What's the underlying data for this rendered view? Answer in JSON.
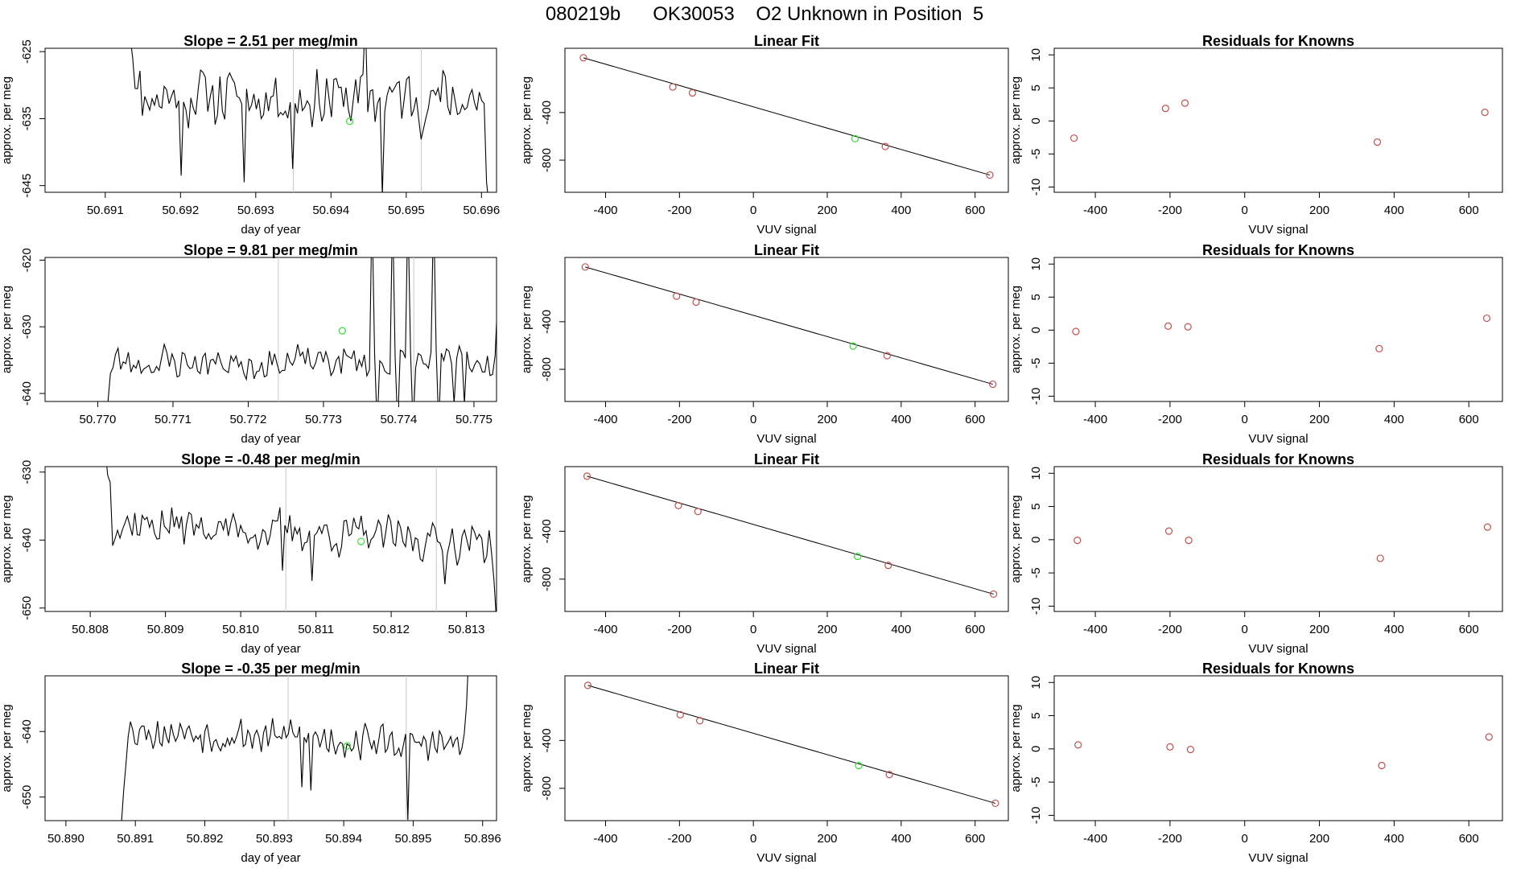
{
  "header": {
    "run_id": "080219b",
    "tank_id": "OK30053",
    "description": "O2 Unknown in Position  5"
  },
  "colors": {
    "line": "#000000",
    "known_point": "#c0504d",
    "unknown_point": "#33dd33",
    "guide_line": "#c8c8c8"
  },
  "chart_data": [
    {
      "type": "line",
      "title": "Slope =  2.51  per meg/min",
      "xlabel": "day of year",
      "ylabel": "approx. per meg",
      "xlim": [
        50.6902,
        50.6962
      ],
      "ylim": [
        -646,
        -624.5
      ],
      "xticks": [
        50.691,
        50.692,
        50.693,
        50.694,
        50.695,
        50.696
      ],
      "xtick_labels": [
        "50.691",
        "50.692",
        "50.693",
        "50.694",
        "50.695",
        "50.696"
      ],
      "yticks": [
        -625,
        -635,
        -645
      ],
      "ytick_labels": [
        "-625",
        "-635",
        "-645"
      ],
      "x_start": 50.6913,
      "x_end": 50.6961,
      "n": 150,
      "seed": 11,
      "base": -631.5,
      "amplitude": 3.4,
      "trend": -0.6,
      "start_values": [
        -620,
        -623,
        -626,
        -630.5
      ],
      "end_values": [
        -644.5,
        -648
      ],
      "spikes": [
        [
          22,
          -643.5
        ],
        [
          48,
          -644.5
        ],
        [
          68,
          -642.5
        ],
        [
          98,
          -620
        ],
        [
          105,
          -646.5
        ]
      ],
      "guides": [
        50.6935,
        50.6952
      ],
      "unknown_point": [
        50.69425,
        -635.4
      ]
    },
    {
      "type": "line",
      "title": "Slope =  9.81  per meg/min",
      "xlabel": "day of year",
      "ylabel": "approx. per meg",
      "xlim": [
        50.7693,
        50.7753
      ],
      "ylim": [
        -641.2,
        -619.6
      ],
      "xticks": [
        50.77,
        50.771,
        50.772,
        50.773,
        50.774,
        50.775
      ],
      "xtick_labels": [
        "50.770",
        "50.771",
        "50.772",
        "50.773",
        "50.774",
        "50.775"
      ],
      "yticks": [
        -620,
        -630,
        -640
      ],
      "ytick_labels": [
        "-620",
        "-630",
        "-640"
      ],
      "x_start": 50.7701,
      "x_end": 50.77535,
      "n": 155,
      "seed": 23,
      "base": -635.4,
      "amplitude": 1.9,
      "trend": 0.3,
      "start_values": [
        -645,
        -641.5,
        -637
      ],
      "end_values": [
        -625,
        -612
      ],
      "spikes": [
        [
          104,
          -612
        ],
        [
          106,
          -645
        ],
        [
          112,
          -612
        ],
        [
          114,
          -645
        ],
        [
          118,
          -612
        ],
        [
          120,
          -645
        ],
        [
          128,
          -612
        ],
        [
          130,
          -645
        ],
        [
          136,
          -641.5
        ],
        [
          140,
          -641.5
        ]
      ],
      "guides": [
        50.7724,
        50.7742
      ],
      "unknown_point": [
        50.77325,
        -630.6
      ]
    },
    {
      "type": "line",
      "title": "Slope =  -0.48  per meg/min",
      "xlabel": "day of year",
      "ylabel": "approx. per meg",
      "xlim": [
        50.8074,
        50.8134
      ],
      "ylim": [
        -650.5,
        -629.2
      ],
      "xticks": [
        50.808,
        50.809,
        50.81,
        50.811,
        50.812,
        50.813
      ],
      "xtick_labels": [
        "50.808",
        "50.809",
        "50.810",
        "50.811",
        "50.812",
        "50.813"
      ],
      "yticks": [
        -630,
        -640,
        -650
      ],
      "ytick_labels": [
        "-630",
        "-640",
        "-650"
      ],
      "x_start": 50.8082,
      "x_end": 50.8134,
      "n": 160,
      "seed": 37,
      "base": -637.3,
      "amplitude": 2.2,
      "trend": -3.2,
      "start_values": [
        -627,
        -630.5,
        -631.5
      ],
      "end_values": [
        -646,
        -652
      ],
      "spikes": [
        [
          72,
          -644.5
        ],
        [
          84,
          -646
        ],
        [
          138,
          -646.5
        ]
      ],
      "guides": [
        50.8106,
        50.8126
      ],
      "unknown_point": [
        50.8116,
        -640.2
      ]
    },
    {
      "type": "line",
      "title": "Slope =  -0.35  per meg/min",
      "xlabel": "day of year",
      "ylabel": "approx. per meg",
      "xlim": [
        50.8897,
        50.8962
      ],
      "ylim": [
        -653.6,
        -631.5
      ],
      "xticks": [
        50.89,
        50.891,
        50.892,
        50.893,
        50.894,
        50.895,
        50.896
      ],
      "xtick_labels": [
        "50.890",
        "50.891",
        "50.892",
        "50.893",
        "50.894",
        "50.895",
        "50.896"
      ],
      "yticks": [
        -640,
        -650
      ],
      "ytick_labels": [
        "-640",
        "-650"
      ],
      "x_start": 50.8908,
      "x_end": 50.8958,
      "n": 155,
      "seed": 53,
      "base": -639.6,
      "amplitude": 2.0,
      "trend": -2.6,
      "start_values": [
        -654,
        -649,
        -645
      ],
      "end_values": [
        -636,
        -628
      ],
      "spikes": [
        [
          80,
          -648.5
        ],
        [
          84,
          -649
        ],
        [
          127,
          -653.5
        ]
      ],
      "guides": [
        50.8932,
        50.8949
      ],
      "unknown_point": [
        50.89405,
        -642.2
      ]
    },
    {
      "type": "scatter",
      "title": "Linear Fit",
      "xlabel": "VUV signal",
      "ylabel": "approx. per meg",
      "xlim": [
        -510,
        690
      ],
      "ylim": [
        -1070,
        140
      ],
      "xticks": [
        -400,
        -200,
        0,
        200,
        400,
        600
      ],
      "xtick_labels": [
        "-400",
        "-200",
        "0",
        "200",
        "400",
        "600"
      ],
      "yticks": [
        -400,
        -800
      ],
      "ytick_labels": [
        "-400",
        "-800"
      ],
      "known_points": [
        [
          -460,
          60
        ],
        [
          -218,
          -185
        ],
        [
          -165,
          -235
        ],
        [
          357,
          -685
        ],
        [
          640,
          -925
        ]
      ],
      "unknown_points": [
        [
          275,
          -620
        ]
      ],
      "fit_line": [
        [
          -460,
          60
        ],
        [
          640,
          -925
        ]
      ]
    },
    {
      "type": "scatter",
      "title": "Linear Fit",
      "xlabel": "VUV signal",
      "ylabel": "approx. per meg",
      "xlim": [
        -510,
        690
      ],
      "ylim": [
        -1070,
        140
      ],
      "xticks": [
        -400,
        -200,
        0,
        200,
        400,
        600
      ],
      "xtick_labels": [
        "-400",
        "-200",
        "0",
        "200",
        "400",
        "600"
      ],
      "yticks": [
        -400,
        -800
      ],
      "ytick_labels": [
        "-400",
        "-800"
      ],
      "known_points": [
        [
          -455,
          60
        ],
        [
          -208,
          -185
        ],
        [
          -155,
          -235
        ],
        [
          362,
          -685
        ],
        [
          648,
          -925
        ]
      ],
      "unknown_points": [
        [
          270,
          -605
        ]
      ],
      "fit_line": [
        [
          -455,
          60
        ],
        [
          648,
          -925
        ]
      ]
    },
    {
      "type": "scatter",
      "title": "Linear Fit",
      "xlabel": "VUV signal",
      "ylabel": "approx. per meg",
      "xlim": [
        -510,
        690
      ],
      "ylim": [
        -1070,
        140
      ],
      "xticks": [
        -400,
        -200,
        0,
        200,
        400,
        600
      ],
      "xtick_labels": [
        "-400",
        "-200",
        "0",
        "200",
        "400",
        "600"
      ],
      "yticks": [
        -400,
        -800
      ],
      "ytick_labels": [
        "-400",
        "-800"
      ],
      "known_points": [
        [
          -450,
          60
        ],
        [
          -203,
          -185
        ],
        [
          -150,
          -235
        ],
        [
          365,
          -685
        ],
        [
          650,
          -925
        ]
      ],
      "unknown_points": [
        [
          282,
          -610
        ]
      ],
      "fit_line": [
        [
          -450,
          60
        ],
        [
          650,
          -925
        ]
      ]
    },
    {
      "type": "scatter",
      "title": "Linear Fit",
      "xlabel": "VUV signal",
      "ylabel": "approx. per meg",
      "xlim": [
        -510,
        690
      ],
      "ylim": [
        -1070,
        140
      ],
      "xticks": [
        -400,
        -200,
        0,
        200,
        400,
        600
      ],
      "xtick_labels": [
        "-400",
        "-200",
        "0",
        "200",
        "400",
        "600"
      ],
      "yticks": [
        -400,
        -800
      ],
      "ytick_labels": [
        "-400",
        "-800"
      ],
      "known_points": [
        [
          -448,
          60
        ],
        [
          -198,
          -185
        ],
        [
          -145,
          -235
        ],
        [
          368,
          -685
        ],
        [
          655,
          -925
        ]
      ],
      "unknown_points": [
        [
          285,
          -610
        ]
      ],
      "fit_line": [
        [
          -448,
          60
        ],
        [
          655,
          -925
        ]
      ]
    },
    {
      "type": "scatter",
      "title": "Residuals for Knowns",
      "xlabel": "VUV signal",
      "ylabel": "approx. per meg",
      "xlim": [
        -510,
        690
      ],
      "ylim": [
        -10.8,
        11
      ],
      "xticks": [
        -400,
        -200,
        0,
        200,
        400,
        600
      ],
      "xtick_labels": [
        "-400",
        "-200",
        "0",
        "200",
        "400",
        "600"
      ],
      "yticks": [
        10,
        5,
        0,
        -5,
        -10
      ],
      "ytick_labels": [
        "10",
        "5",
        "0",
        "-5",
        "-10"
      ],
      "known_points": [
        [
          -457,
          -2.6
        ],
        [
          -212,
          1.9
        ],
        [
          -160,
          2.7
        ],
        [
          355,
          -3.2
        ],
        [
          643,
          1.3
        ]
      ]
    },
    {
      "type": "scatter",
      "title": "Residuals for Knowns",
      "xlabel": "VUV signal",
      "ylabel": "approx. per meg",
      "xlim": [
        -510,
        690
      ],
      "ylim": [
        -10.8,
        11
      ],
      "xticks": [
        -400,
        -200,
        0,
        200,
        400,
        600
      ],
      "xtick_labels": [
        "-400",
        "-200",
        "0",
        "200",
        "400",
        "600"
      ],
      "yticks": [
        10,
        5,
        0,
        -5,
        -10
      ],
      "ytick_labels": [
        "10",
        "5",
        "0",
        "-5",
        "-10"
      ],
      "known_points": [
        [
          -452,
          -0.2
        ],
        [
          -205,
          0.6
        ],
        [
          -152,
          0.5
        ],
        [
          360,
          -2.8
        ],
        [
          648,
          1.8
        ]
      ]
    },
    {
      "type": "scatter",
      "title": "Residuals for Knowns",
      "xlabel": "VUV signal",
      "ylabel": "approx. per meg",
      "xlim": [
        -510,
        690
      ],
      "ylim": [
        -10.8,
        11
      ],
      "xticks": [
        -400,
        -200,
        0,
        200,
        400,
        600
      ],
      "xtick_labels": [
        "-400",
        "-200",
        "0",
        "200",
        "400",
        "600"
      ],
      "yticks": [
        10,
        5,
        0,
        -5,
        -10
      ],
      "ytick_labels": [
        "10",
        "5",
        "0",
        "-5",
        "-10"
      ],
      "known_points": [
        [
          -448,
          -0.1
        ],
        [
          -203,
          1.3
        ],
        [
          -150,
          -0.1
        ],
        [
          363,
          -2.8
        ],
        [
          650,
          1.9
        ]
      ]
    },
    {
      "type": "scatter",
      "title": "Residuals for Knowns",
      "xlabel": "VUV signal",
      "ylabel": "approx. per meg",
      "xlim": [
        -510,
        690
      ],
      "ylim": [
        -10.8,
        11
      ],
      "xticks": [
        -400,
        -200,
        0,
        200,
        400,
        600
      ],
      "xtick_labels": [
        "-400",
        "-200",
        "0",
        "200",
        "400",
        "600"
      ],
      "yticks": [
        10,
        5,
        0,
        -5,
        -10
      ],
      "ytick_labels": [
        "10",
        "5",
        "0",
        "-5",
        "-10"
      ],
      "known_points": [
        [
          -446,
          0.6
        ],
        [
          -200,
          0.3
        ],
        [
          -145,
          -0.1
        ],
        [
          367,
          -2.5
        ],
        [
          654,
          1.8
        ]
      ]
    }
  ]
}
